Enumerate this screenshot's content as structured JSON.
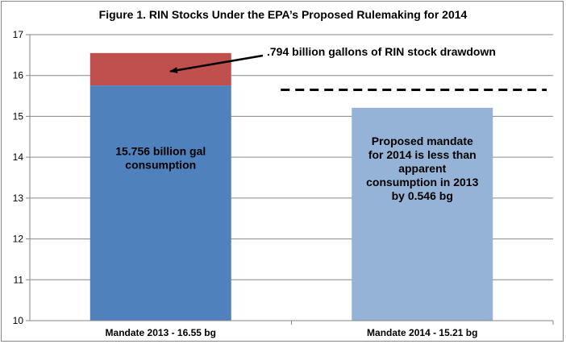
{
  "chart_data": {
    "type": "bar",
    "stacked": true,
    "title": "Figure 1. RIN Stocks Under the EPA’s Proposed Rulemaking for 2014",
    "xlabel": "",
    "ylabel": "",
    "ylim": [
      10,
      17
    ],
    "y_ticks": [
      "10",
      "11",
      "12",
      "13",
      "14",
      "15",
      "16",
      "17"
    ],
    "grid": true,
    "categories": [
      "Mandate 2013 - 16.55 bg",
      "Mandate 2014 -  15.21 bg"
    ],
    "bars": [
      {
        "segments": [
          {
            "from": 10,
            "to": 15.756,
            "color": "#4F81BD",
            "label": [
              "15.756 billion gal",
              "consumption"
            ]
          },
          {
            "from": 15.756,
            "to": 16.55,
            "color": "#C0504D",
            "label": []
          }
        ]
      },
      {
        "segments": [
          {
            "from": 10,
            "to": 15.21,
            "color": "#95B3D7",
            "label": [
              "Proposed mandate",
              "for 2014 is less than",
              "apparent",
              "consumption  in 2013",
              "by 0.546 bg"
            ]
          }
        ]
      }
    ],
    "reference_line": {
      "value": 15.65,
      "style": "dashed",
      "color": "#000000"
    },
    "annotation": {
      "text": ".794 billion gallons of RIN stock drawdown",
      "arrow_target_value": 16.1
    }
  }
}
